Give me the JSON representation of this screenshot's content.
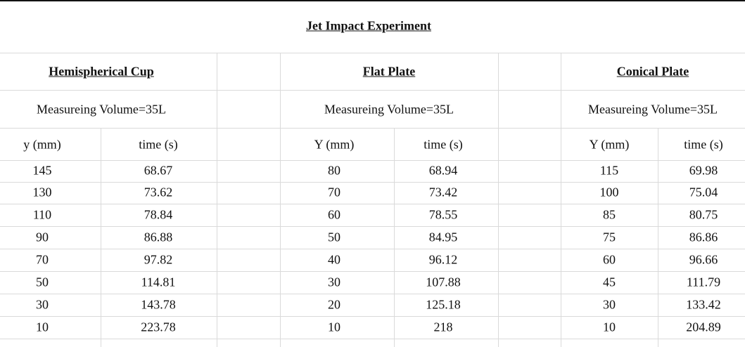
{
  "title": "Jet Impact Experiment",
  "sections": [
    {
      "name": "Hemispherical Cup",
      "volume": "Measureing Volume=35L",
      "columns": [
        "y (mm)",
        "time (s)"
      ],
      "rows": [
        [
          145,
          68.67
        ],
        [
          130,
          73.62
        ],
        [
          110,
          78.84
        ],
        [
          90,
          86.88
        ],
        [
          70,
          97.82
        ],
        [
          50,
          114.81
        ],
        [
          30,
          143.78
        ],
        [
          10,
          223.78
        ]
      ]
    },
    {
      "name": "Flat Plate",
      "volume": "Measureing Volume=35L",
      "columns": [
        "Y (mm)",
        "time (s)"
      ],
      "rows": [
        [
          80,
          68.94
        ],
        [
          70,
          73.42
        ],
        [
          60,
          78.55
        ],
        [
          50,
          84.95
        ],
        [
          40,
          96.12
        ],
        [
          30,
          107.88
        ],
        [
          20,
          125.18
        ],
        [
          10,
          218
        ]
      ]
    },
    {
      "name": "Conical Plate",
      "volume": "Measureing Volume=35L",
      "columns": [
        "Y (mm)",
        "time (s)"
      ],
      "rows": [
        [
          115,
          69.98
        ],
        [
          100,
          75.04
        ],
        [
          85,
          80.75
        ],
        [
          75,
          86.86
        ],
        [
          60,
          96.66
        ],
        [
          45,
          111.79
        ],
        [
          30,
          133.42
        ],
        [
          10,
          204.89
        ]
      ]
    }
  ]
}
